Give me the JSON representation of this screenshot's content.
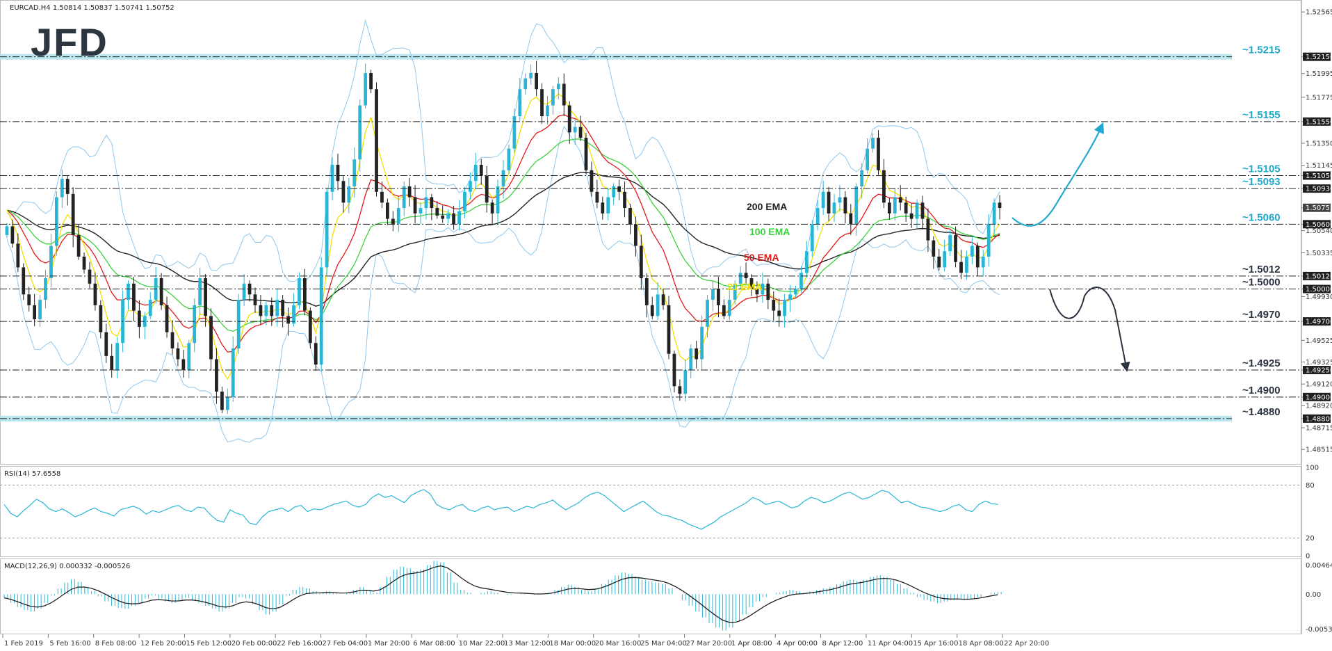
{
  "header": {
    "symbol_line": "EURCAD.H4 1.50814 1.50837 1.50741 1.50752",
    "logo": "JFD"
  },
  "rsi_panel": {
    "title": "RSI(14) 57.6558",
    "ticks": [
      "100",
      "80",
      "20",
      "0"
    ]
  },
  "macd_panel": {
    "title": "MACD(12,26,9) 0.000332 -0.000526",
    "ticks": [
      "0.004644",
      "0.00",
      "-0.005349"
    ]
  },
  "colors": {
    "up_candle": "#29b6d6",
    "down_candle": "#222222",
    "ema21": "#f2e000",
    "ema50": "#e01b1b",
    "ema100": "#3cd23c",
    "ema200": "#222222",
    "bollinger": "#8fc7ec",
    "level_line": "#222222",
    "zone_fill": "#b9e6ef",
    "level_label": "#1fa8c9",
    "level_label_dark": "#2b3340",
    "up_arrow": "#1fa8d0",
    "down_arrow": "#2b3340"
  },
  "chart_data": [
    {
      "type": "line",
      "title": "EURCAD.H4 1.50814 1.50837 1.50741 1.50752",
      "ylim": [
        1.484,
        1.5265
      ],
      "y_ticks": [
        "1.52565",
        "1.52150",
        "1.51995",
        "1.51775",
        "1.51550",
        "1.51350",
        "1.51145",
        "1.51050",
        "1.50930",
        "1.50752",
        "1.50600",
        "1.50540",
        "1.50335",
        "1.50120",
        "1.50000",
        "1.49930",
        "1.49700",
        "1.49525",
        "1.49325",
        "1.49250",
        "1.49120",
        "1.49000",
        "1.48920",
        "1.48800",
        "1.48715",
        "1.48515"
      ],
      "x_ticks": [
        "1 Feb 2019",
        "5 Feb 16:00",
        "8 Feb 08:00",
        "12 Feb 20:00",
        "15 Feb 12:00",
        "20 Feb 00:00",
        "22 Feb 16:00",
        "27 Feb 04:00",
        "1 Mar 20:00",
        "6 Mar 08:00",
        "10 Mar 22:00",
        "13 Mar 12:00",
        "18 Mar 00:00",
        "20 Mar 16:00",
        "25 Mar 04:00",
        "27 Mar 20:00",
        "1 Apr 08:00",
        "4 Apr 00:00",
        "8 Apr 12:00",
        "11 Apr 04:00",
        "15 Apr 16:00",
        "18 Apr 08:00",
        "22 Apr 20:00"
      ],
      "levels": [
        {
          "value": 1.5215,
          "label": "~1.5215",
          "zone": true
        },
        {
          "value": 1.5155,
          "label": "~1.5155",
          "zone": false
        },
        {
          "value": 1.5105,
          "label": "~1.5105",
          "zone": false
        },
        {
          "value": 1.5093,
          "label": "~1.5093",
          "zone": false
        },
        {
          "value": 1.506,
          "label": "~1.5060",
          "zone": false
        },
        {
          "value": 1.5012,
          "label": "~1.5012",
          "zone": false
        },
        {
          "value": 1.5,
          "label": "~1.5000",
          "zone": false
        },
        {
          "value": 1.497,
          "label": "~1.4970",
          "zone": false
        },
        {
          "value": 1.4925,
          "label": "~1.4925",
          "zone": false
        },
        {
          "value": 1.49,
          "label": "~1.4900",
          "zone": false
        },
        {
          "value": 1.488,
          "label": "~1.4880",
          "zone": true
        }
      ],
      "ema_labels": [
        {
          "label": "200 EMA",
          "color": "#222222"
        },
        {
          "label": "100 EMA",
          "color": "#3cd23c"
        },
        {
          "label": "50 EMA",
          "color": "#e01b1b"
        },
        {
          "label": "21 EMA",
          "color": "#f2e000"
        }
      ],
      "current_price": "1.50752",
      "price_path": [
        1.5058,
        1.5042,
        1.502,
        1.4995,
        1.4985,
        1.4972,
        1.499,
        1.501,
        1.504,
        1.5085,
        1.5102,
        1.5088,
        1.505,
        1.503,
        1.5018,
        1.5005,
        1.4985,
        1.496,
        1.4938,
        1.4925,
        1.495,
        1.499,
        1.5005,
        1.498,
        1.4965,
        1.4975,
        1.499,
        1.501,
        1.4985,
        1.496,
        1.4945,
        1.4935,
        1.4925,
        1.495,
        1.4985,
        1.501,
        1.4975,
        1.4935,
        1.4905,
        1.4888,
        1.49,
        1.4945,
        1.499,
        1.5005,
        1.4995,
        1.4985,
        1.4975,
        1.4985,
        1.4975,
        1.499,
        1.4975,
        1.4968,
        1.4985,
        1.501,
        1.498,
        1.495,
        1.493,
        1.502,
        1.509,
        1.5115,
        1.51,
        1.508,
        1.5095,
        1.512,
        1.517,
        1.52,
        1.5185,
        1.509,
        1.508,
        1.5065,
        1.506,
        1.5075,
        1.5095,
        1.5085,
        1.507,
        1.5075,
        1.5085,
        1.5075,
        1.5068,
        1.5065,
        1.507,
        1.506,
        1.5072,
        1.509,
        1.51,
        1.5115,
        1.5105,
        1.508,
        1.507,
        1.5095,
        1.511,
        1.513,
        1.516,
        1.5185,
        1.5195,
        1.52,
        1.5185,
        1.516,
        1.517,
        1.5185,
        1.519,
        1.517,
        1.5145,
        1.515,
        1.514,
        1.511,
        1.509,
        1.508,
        1.507,
        1.5085,
        1.5095,
        1.509,
        1.5075,
        1.506,
        1.504,
        1.501,
        1.4985,
        1.4975,
        1.4995,
        1.4985,
        1.494,
        1.491,
        1.4903,
        1.4925,
        1.4945,
        1.4935,
        1.4965,
        1.499,
        1.5,
        1.4985,
        1.4975,
        1.499,
        1.5005,
        1.5015,
        1.501,
        1.5,
        1.4995,
        1.5005,
        1.499,
        1.498,
        1.4975,
        1.499,
        1.4995,
        1.5,
        1.5015,
        1.5035,
        1.506,
        1.5075,
        1.509,
        1.507,
        1.508,
        1.5085,
        1.507,
        1.506,
        1.5095,
        1.511,
        1.513,
        1.514,
        1.511,
        1.508,
        1.507,
        1.5085,
        1.508,
        1.507,
        1.5065,
        1.508,
        1.5065,
        1.5045,
        1.503,
        1.502,
        1.5035,
        1.505,
        1.5025,
        1.5015,
        1.503,
        1.504,
        1.502,
        1.503,
        1.506,
        1.508,
        1.5075
      ],
      "arrow_scenarios": [
        "up-arrow-to-1.5155",
        "down-arrow-to-1.4925"
      ]
    },
    {
      "type": "line",
      "title": "RSI(14) 57.6558",
      "ylim": [
        0,
        100
      ],
      "y_ticks": [
        100,
        80,
        20,
        0
      ],
      "values": [
        58,
        48,
        44,
        51,
        57,
        64,
        60,
        53,
        50,
        53,
        49,
        44,
        47,
        51,
        54,
        50,
        48,
        45,
        52,
        54,
        56,
        53,
        47,
        51,
        49,
        52,
        55,
        57,
        52,
        50,
        55,
        54,
        46,
        40,
        38,
        52,
        48,
        46,
        37,
        35,
        44,
        50,
        52,
        54,
        50,
        55,
        57,
        50,
        53,
        52,
        55,
        58,
        60,
        62,
        57,
        55,
        58,
        66,
        70,
        66,
        68,
        64,
        60,
        68,
        72,
        75,
        70,
        58,
        54,
        52,
        56,
        58,
        52,
        50,
        54,
        56,
        52,
        54,
        55,
        50,
        53,
        56,
        54,
        58,
        60,
        63,
        57,
        52,
        56,
        60,
        66,
        70,
        72,
        68,
        62,
        56,
        50,
        54,
        58,
        62,
        56,
        50,
        46,
        45,
        42,
        40,
        36,
        33,
        30,
        34,
        38,
        44,
        48,
        52,
        56,
        60,
        66,
        63,
        58,
        60,
        62,
        58,
        54,
        56,
        62,
        66,
        64,
        60,
        62,
        66,
        70,
        72,
        68,
        64,
        66,
        70,
        74,
        72,
        66,
        60,
        62,
        58,
        55,
        54,
        52,
        50,
        52,
        56,
        58,
        52,
        50,
        58,
        62,
        59,
        58
      ],
      "reference_lines": [
        80,
        20
      ]
    },
    {
      "type": "bar",
      "title": "MACD(12,26,9) 0.000332 -0.000526",
      "ylim": [
        -0.005349,
        0.004644
      ],
      "y_ticks": [
        0.004644,
        0.0,
        -0.005349
      ],
      "values": [
        -0.0005,
        -0.0012,
        -0.0018,
        -0.0022,
        -0.0024,
        -0.002,
        -0.0012,
        -0.0002,
        0.0008,
        0.0016,
        0.0021,
        0.0017,
        0.001,
        0.0004,
        -0.0003,
        -0.001,
        -0.0016,
        -0.0019,
        -0.002,
        -0.0016,
        -0.0012,
        -0.0006,
        -0.0002,
        -0.0006,
        -0.001,
        -0.0012,
        -0.0009,
        -0.0005,
        -0.0008,
        -0.0012,
        -0.0016,
        -0.002,
        -0.0024,
        -0.002,
        -0.0012,
        -0.0004,
        -0.0006,
        -0.0014,
        -0.0022,
        -0.0028,
        -0.0024,
        -0.0014,
        -0.0002,
        0.0006,
        0.001,
        0.0008,
        0.0004,
        0.0002,
        0.0004,
        0.0002,
        0.0,
        0.0002,
        0.0006,
        0.001,
        0.0006,
        0.0002,
        0.001,
        0.0024,
        0.0034,
        0.0038,
        0.0036,
        0.0032,
        0.0034,
        0.004,
        0.0046,
        0.0044,
        0.003,
        0.0016,
        0.0006,
        0.0002,
        0.0,
        0.0002,
        0.0004,
        0.0002,
        0.0,
        -0.0001,
        0.0,
        0.0001,
        0.0,
        -0.0001,
        0.0,
        0.0002,
        0.0006,
        0.001,
        0.0013,
        0.001,
        0.0006,
        0.0004,
        0.0008,
        0.0014,
        0.002,
        0.0026,
        0.003,
        0.0028,
        0.0024,
        0.002,
        0.0018,
        0.0016,
        0.0014,
        0.0008,
        0.0,
        -0.0008,
        -0.0016,
        -0.0024,
        -0.0032,
        -0.004,
        -0.0046,
        -0.005,
        -0.0046,
        -0.0038,
        -0.0028,
        -0.0018,
        -0.001,
        -0.0004,
        0.0,
        0.0002,
        0.0004,
        0.0006,
        0.0004,
        0.0002,
        0.0004,
        0.0006,
        0.0008,
        0.001,
        0.0014,
        0.0018,
        0.002,
        0.0018,
        0.002,
        0.0024,
        0.0026,
        0.0024,
        0.002,
        0.0014,
        0.0008,
        0.0002,
        -0.0004,
        -0.0008,
        -0.001,
        -0.0012,
        -0.001,
        -0.0008,
        -0.0006,
        -0.0008,
        -0.0006,
        -0.0004,
        0.0,
        0.0002,
        0.0003
      ],
      "signal": "line"
    }
  ]
}
